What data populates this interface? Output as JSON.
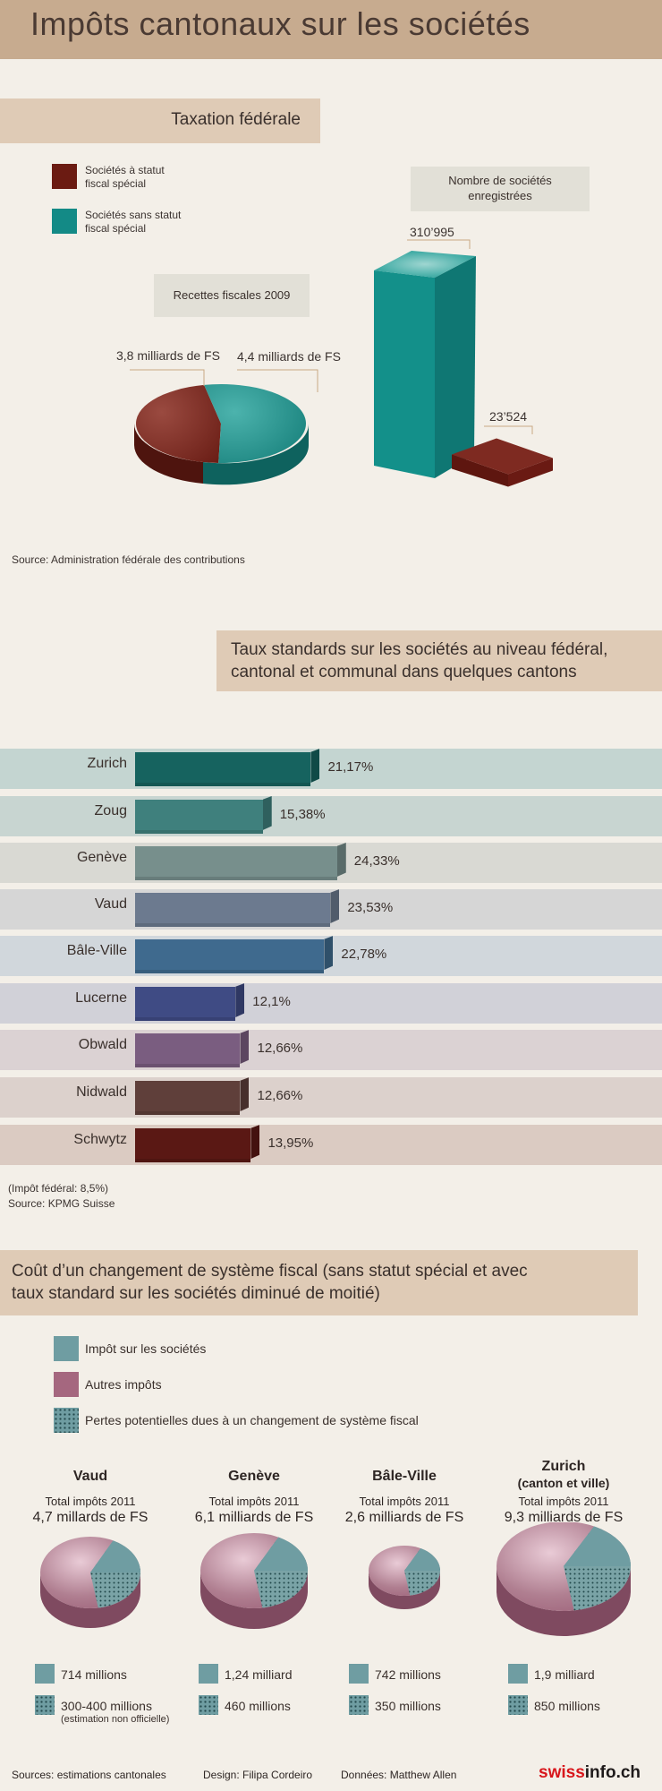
{
  "title": "Impôts cantonaux sur les sociétés",
  "colors": {
    "special": "#6b1b12",
    "nonspecial": "#138a86",
    "impot": "#6f9da2",
    "autres": "#a5677f"
  },
  "section1": {
    "header": "Taxation fédérale",
    "legend_special": [
      "Sociétés à statut",
      "fiscal spécial"
    ],
    "legend_nonspecial": [
      "Sociétés sans statut",
      "fiscal spécial"
    ],
    "pie_title": "Recettes fiscales 2009",
    "pie_label_special": "3,8 milliards de FS",
    "pie_label_nonspecial": "4,4 milliards de FS",
    "bar_title": [
      "Nombre de sociétés",
      "enregistrées"
    ],
    "bar_label_nonspecial": "310’995",
    "bar_label_special": "23’524",
    "source": "Source: Administration fédérale des contributions"
  },
  "section2": {
    "header": [
      "Taux standards sur les sociétés au niveau fédéral,",
      "cantonal et communal dans quelques cantons"
    ],
    "note": "(Impôt fédéral: 8,5%)",
    "source": "Source: KPMG Suisse"
  },
  "section3": {
    "header": [
      "Coût d’un changement de système fiscal (sans statut spécial et avec",
      "taux standard sur les sociétés diminué de moitié)"
    ],
    "legend": [
      "Impôt sur les sociétés",
      "Autres impôts",
      "Pertes potentielles dues à un changement de système fiscal"
    ],
    "total_label": "Total impôts 2011"
  },
  "chart_data": [
    {
      "type": "pie",
      "title": "Recettes fiscales 2009",
      "unit": "milliards de FS",
      "slices": [
        {
          "name": "Sociétés à statut fiscal spécial",
          "value": 3.8,
          "label": "3,8 milliards de FS"
        },
        {
          "name": "Sociétés sans statut fiscal spécial",
          "value": 4.4,
          "label": "4,4 milliards de FS"
        }
      ]
    },
    {
      "type": "bar",
      "title": "Nombre de sociétés enregistrées",
      "categories": [
        "Sociétés sans statut fiscal spécial",
        "Sociétés à statut fiscal spécial"
      ],
      "values": [
        310995,
        23524
      ],
      "labels": [
        "310’995",
        "23’524"
      ]
    },
    {
      "type": "bar",
      "title": "Taux standards sur les sociétés au niveau fédéral, cantonal et communal dans quelques cantons",
      "categories": [
        "Zurich",
        "Zoug",
        "Genève",
        "Vaud",
        "Bâle-Ville",
        "Lucerne",
        "Obwald",
        "Nidwald",
        "Schwytz"
      ],
      "values": [
        21.17,
        15.38,
        24.33,
        23.53,
        22.78,
        12.1,
        12.66,
        12.66,
        13.95
      ],
      "labels": [
        "21,17%",
        "15,38%",
        "24,33%",
        "23,53%",
        "22,78%",
        "12,1%",
        "12,66%",
        "12,66%",
        "13,95%"
      ],
      "bar_colors": [
        "#16635f",
        "#3f807d",
        "#778f8c",
        "#6c7a8f",
        "#3f6a8e",
        "#3f4b84",
        "#7a5d80",
        "#5f3f3a",
        "#5a1814"
      ],
      "row_colors": [
        "#c4d5d1",
        "#c8d5d1",
        "#d9d9d3",
        "#d6d6d6",
        "#d1d7dc",
        "#d1d1d8",
        "#dbd2d3",
        "#dcd1cc",
        "#dbcbc2"
      ]
    },
    {
      "type": "pie",
      "title": "Coût d’un changement de système fiscal",
      "cantons": [
        {
          "name": "Vaud",
          "name2": "",
          "total": "4,7 millards de FS",
          "impot_label": "714 millions",
          "pertes_label": "300-400 millions",
          "note": "(estimation non officielle)"
        },
        {
          "name": "Genève",
          "name2": "",
          "total": "6,1 milliards de FS",
          "impot_label": "1,24 milliard",
          "pertes_label": "460 millions",
          "note": ""
        },
        {
          "name": "Bâle-Ville",
          "name2": "",
          "total": "2,6 milliards de FS",
          "impot_label": "742 millions",
          "pertes_label": "350 millions",
          "note": ""
        },
        {
          "name": "Zurich",
          "name2": "(canton et ville)",
          "total": "9,3 milliards de FS",
          "impot_label": "1,9 milliard",
          "pertes_label": "850 millions",
          "note": ""
        }
      ]
    }
  ],
  "footer": {
    "sources": "Sources: estimations  cantonales",
    "design": "Design: Filipa Cordeiro",
    "data": "Données: Matthew Allen",
    "logo_a": "swiss",
    "logo_b": "info.ch"
  }
}
